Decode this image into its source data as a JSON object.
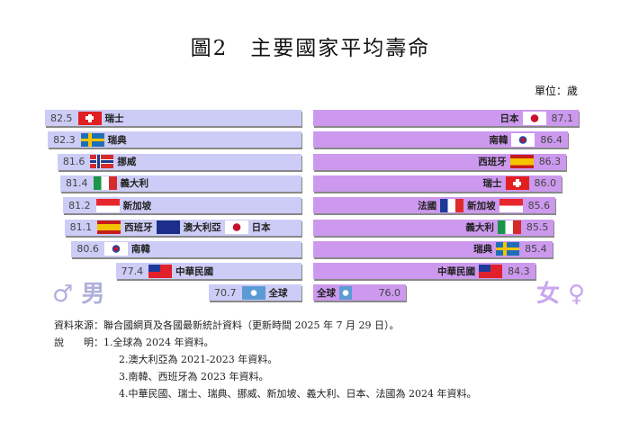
{
  "title": "圖2　主要國家平均壽命",
  "unit": "單位：歲",
  "male_label": "♂ 男",
  "female_label": "女 ♀",
  "colors": {
    "male": "#ccccf6",
    "female": "#cc99ee"
  },
  "chart_data": [
    {
      "type": "bar",
      "series": [
        {
          "name": "男",
          "categories": [
            "瑞士",
            "瑞典",
            "挪威",
            "義大利",
            "新加坡",
            "西班牙、澳大利亞、日本",
            "南韓",
            "中華民國",
            "全球"
          ],
          "values": [
            82.5,
            82.3,
            81.6,
            81.4,
            81.2,
            81.1,
            80.6,
            77.4,
            70.7
          ],
          "flags": [
            [
              "ch"
            ],
            [
              "se"
            ],
            [
              "no"
            ],
            [
              "it"
            ],
            [
              "sg"
            ],
            [
              "es",
              "au",
              "jp"
            ],
            [
              "kr"
            ],
            [
              "tw"
            ],
            [
              "un"
            ]
          ],
          "labels": [
            [
              "瑞士"
            ],
            [
              "瑞典"
            ],
            [
              "挪威"
            ],
            [
              "義大利"
            ],
            [
              "新加坡"
            ],
            [
              "西班牙",
              "澳大利亞",
              "日本"
            ],
            [
              "南韓"
            ],
            [
              "中華民國"
            ],
            [
              "全球"
            ]
          ]
        }
      ]
    },
    {
      "type": "bar",
      "series": [
        {
          "name": "女",
          "categories": [
            "日本",
            "南韓",
            "西班牙",
            "瑞士",
            "法國、新加坡",
            "義大利",
            "瑞典",
            "中華民國",
            "全球"
          ],
          "values": [
            87.1,
            86.4,
            86.3,
            86.0,
            85.6,
            85.5,
            85.4,
            84.3,
            76.0
          ],
          "flags": [
            [
              "jp"
            ],
            [
              "kr"
            ],
            [
              "es"
            ],
            [
              "ch"
            ],
            [
              "fr",
              "sg"
            ],
            [
              "it"
            ],
            [
              "se"
            ],
            [
              "tw"
            ],
            [
              "un"
            ]
          ],
          "labels": [
            [
              "日本"
            ],
            [
              "南韓"
            ],
            [
              "西班牙"
            ],
            [
              "瑞士"
            ],
            [
              "法國",
              "新加坡"
            ],
            [
              "義大利"
            ],
            [
              "瑞典"
            ],
            [
              "中華民國"
            ],
            [
              "全球"
            ]
          ]
        }
      ]
    }
  ],
  "notes": {
    "source": "資料來源：聯合國網頁及各國最新統計資料（更新時間 2025 年 7 月 29 日）。",
    "note_head": "說　　明：1.全球為 2024 年資料。",
    "note2": "2.澳大利亞為 2021-2023 年資料。",
    "note3": "3.南韓、西班牙為 2023 年資料。",
    "note4": "4.中華民國、瑞士、瑞典、挪威、新加坡、義大利、日本、法國為 2024 年資料。"
  }
}
